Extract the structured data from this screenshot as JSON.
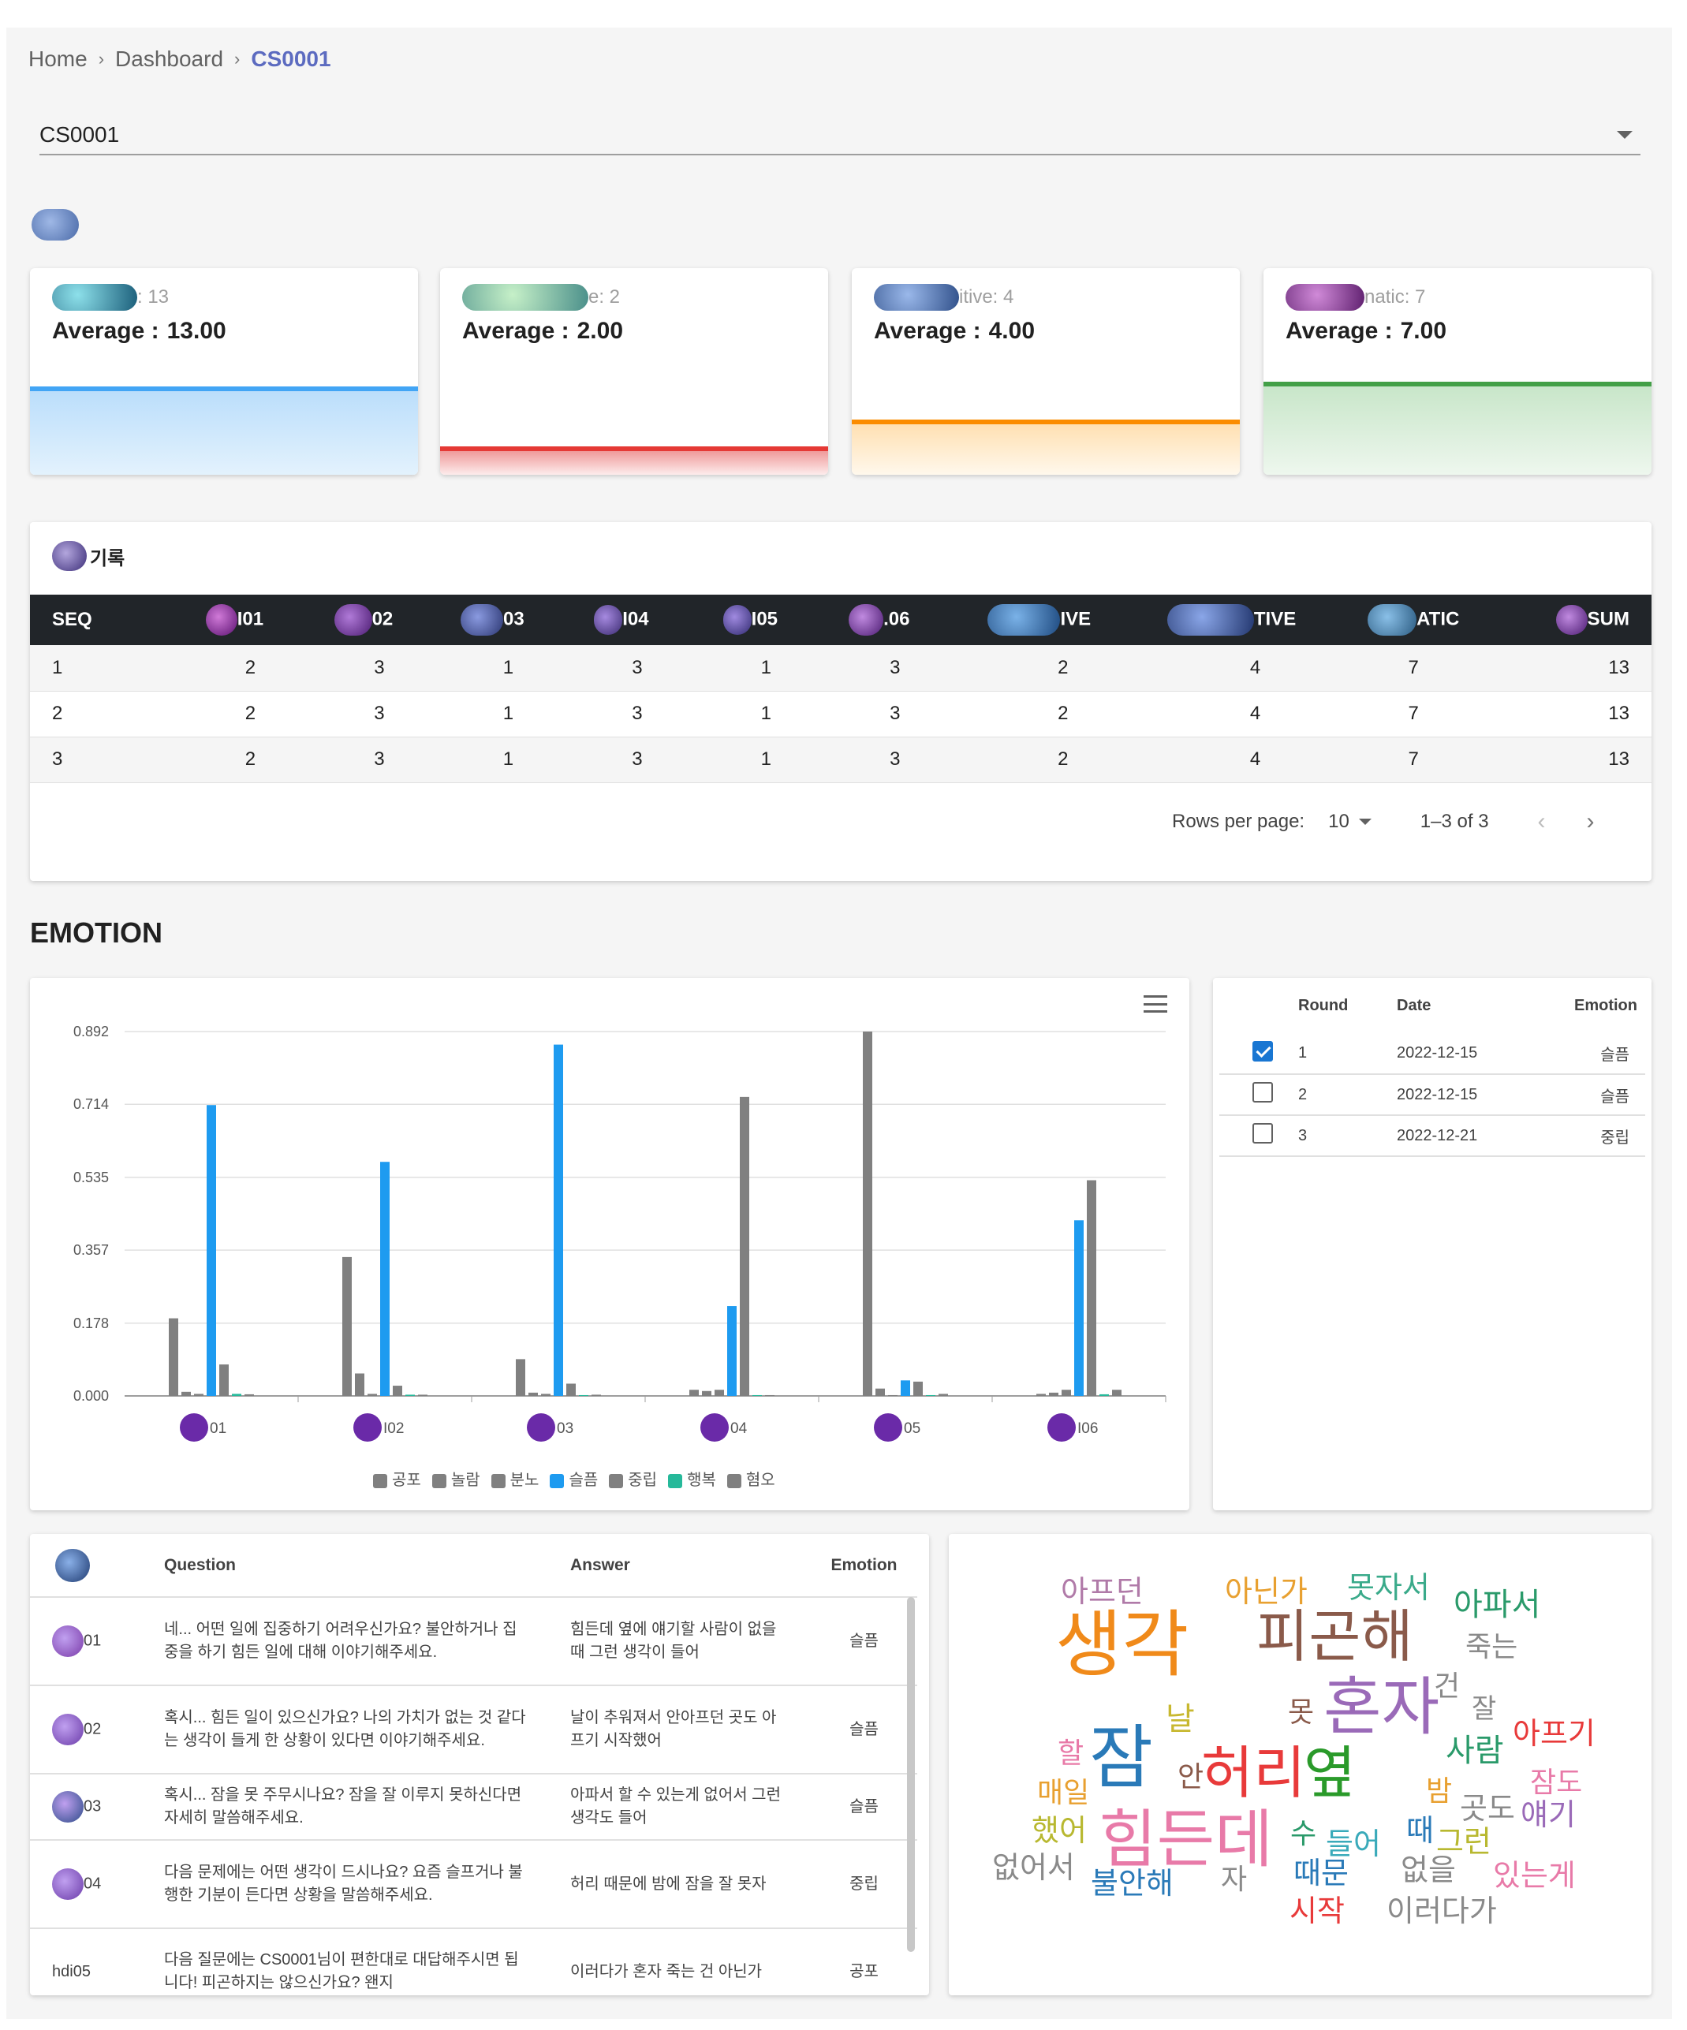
{
  "breadcrumb": {
    "items": [
      "Home",
      "Dashboard",
      "CS0001"
    ]
  },
  "subject_select": {
    "value": "CS0001"
  },
  "score_cards": [
    {
      "label": "13",
      "label_suffix": ": 13",
      "average_label": "Average :",
      "average": "13.00",
      "color": "#42a5f5",
      "fill_level": 0.62
    },
    {
      "label": "2",
      "label_suffix": "e: 2",
      "average_label": "Average :",
      "average": "2.00",
      "color": "#e53935",
      "fill_level": 0.12
    },
    {
      "label": "4",
      "label_suffix": "itive: 4",
      "average_label": "Average :",
      "average": "4.00",
      "color": "#fb8c00",
      "fill_level": 0.31
    },
    {
      "label": "7",
      "label_suffix": "natic: 7",
      "average_label": "Average :",
      "average": "7.00",
      "color": "#43a047",
      "fill_level": 0.55
    }
  ],
  "record": {
    "title": "기록",
    "columns": [
      "SEQ",
      "I01",
      "02",
      "03",
      "I04",
      "I05",
      ".06",
      "IVE",
      "TIVE",
      "ATIC",
      "SUM"
    ],
    "rows": [
      [
        "1",
        "2",
        "3",
        "1",
        "3",
        "1",
        "3",
        "2",
        "4",
        "7",
        "13"
      ],
      [
        "2",
        "2",
        "3",
        "1",
        "3",
        "1",
        "3",
        "2",
        "4",
        "7",
        "13"
      ],
      [
        "3",
        "2",
        "3",
        "1",
        "3",
        "1",
        "3",
        "2",
        "4",
        "7",
        "13"
      ]
    ],
    "rows_per_page_label": "Rows per page:",
    "rows_per_page": "10",
    "range": "1–3 of 3"
  },
  "emotion": {
    "title": "EMOTION"
  },
  "chart_data": {
    "type": "bar",
    "categories": [
      "01",
      "I02",
      "03",
      "04",
      "05",
      "I06"
    ],
    "yticks": [
      "0.000",
      "0.178",
      "0.357",
      "0.535",
      "0.714",
      "0.892"
    ],
    "ylim": [
      0,
      0.892
    ],
    "series": [
      {
        "name": "공포",
        "color": "#808080",
        "values": [
          0.19,
          0.34,
          0.09,
          0.015,
          0.892,
          0.005
        ]
      },
      {
        "name": "놀람",
        "color": "#808080",
        "values": [
          0.01,
          0.055,
          0.008,
          0.012,
          0.018,
          0.008
        ]
      },
      {
        "name": "분노",
        "color": "#808080",
        "values": [
          0.005,
          0.005,
          0.005,
          0.015,
          0.002,
          0.015
        ]
      },
      {
        "name": "슬픔",
        "color": "#1e9bf0",
        "values": [
          0.712,
          0.573,
          0.86,
          0.22,
          0.038,
          0.43
        ]
      },
      {
        "name": "중립",
        "color": "#808080",
        "values": [
          0.077,
          0.025,
          0.03,
          0.732,
          0.035,
          0.528
        ]
      },
      {
        "name": "행복",
        "color": "#26b99a",
        "values": [
          0.005,
          0.003,
          0.002,
          0.002,
          0.002,
          0.004
        ]
      },
      {
        "name": "혐오",
        "color": "#808080",
        "values": [
          0.004,
          0.003,
          0.003,
          0.002,
          0.005,
          0.015
        ]
      }
    ]
  },
  "rounds": {
    "headers": [
      "Round",
      "Date",
      "Emotion"
    ],
    "rows": [
      {
        "round": "1",
        "date": "2022-12-15",
        "emotion": "슬픔",
        "checked": true
      },
      {
        "round": "2",
        "date": "2022-12-15",
        "emotion": "슬픔",
        "checked": false
      },
      {
        "round": "3",
        "date": "2022-12-21",
        "emotion": "중립",
        "checked": false
      }
    ]
  },
  "qa": {
    "headers": [
      "Question",
      "Answer",
      "Emotion"
    ],
    "rows": [
      {
        "id": "01",
        "question": "네... 어떤 일에 집중하기 어려우신가요? 불안하거나 집중을 하기 힘든 일에 대해 이야기해주세요.",
        "answer": "힘든데 옆에 얘기할 사람이 없을 때 그런 생각이 들어",
        "emotion": "슬픔"
      },
      {
        "id": "02",
        "question": "혹시... 힘든 일이 있으신가요? 나의 가치가 없는 것 같다는 생각이 들게 한 상황이 있다면 이야기해주세요.",
        "answer": "날이 추워져서 안아프던 곳도 아프기 시작했어",
        "emotion": "슬픔"
      },
      {
        "id": "03",
        "question": "혹시... 잠을 못 주무시나요? 잠을 잘 이루지 못하신다면 자세히 말씀해주세요.",
        "answer": "아파서 할 수 있는게 없어서 그런 생각도 들어",
        "emotion": "슬픔"
      },
      {
        "id": "04",
        "question": "다음 문제에는 어떤 생각이 드시나요? 요즘 슬프거나 불행한 기분이 든다면 상황을 말씀해주세요.",
        "answer": "허리 때문에 밤에 잠을 잘 못자",
        "emotion": "중립"
      },
      {
        "id": "hdi05",
        "question": "다음 질문에는 CS0001님이 편한대로 대답해주시면 됩니다! 피곤하지는 않으신가요? 왠지",
        "answer": "이러다가 혼자 죽는 건 아닌가",
        "emotion": "공포"
      }
    ]
  },
  "wordcloud": {
    "words": [
      "아프던",
      "아닌가",
      "못자서",
      "아파서",
      "생각",
      "피곤해",
      "죽는",
      "날",
      "건",
      "잘",
      "아프기",
      "할",
      "못",
      "혼자",
      "사람",
      "잠",
      "안",
      "허리",
      "옆",
      "잠도",
      "매일",
      "밤",
      "곳도",
      "얘기",
      "했어",
      "힘든데",
      "수",
      "들어",
      "때",
      "그런",
      "없어서",
      "자",
      "불안해",
      "때문",
      "없을",
      "있는게",
      "시작",
      "이러다가"
    ]
  }
}
